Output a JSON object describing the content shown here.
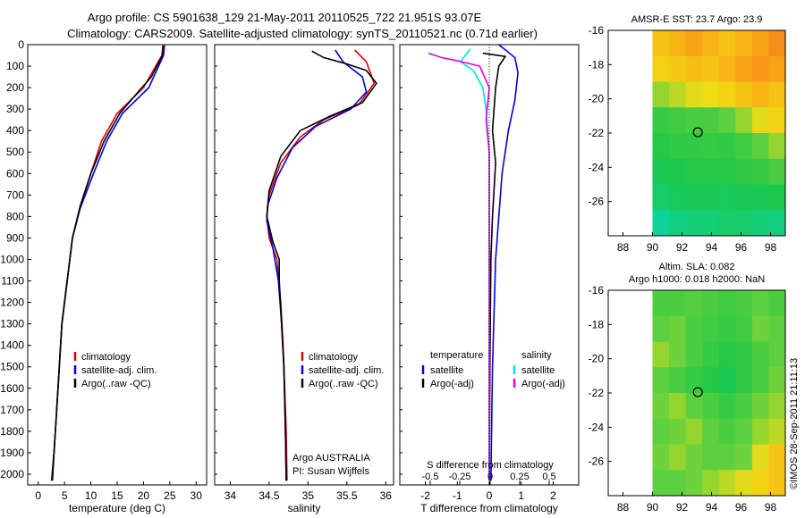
{
  "header": {
    "line1": "Argo profile: CS 5901638_129 21-May-2011 20110525_722 21.951S 93.07E",
    "line2": "Climatology: CARS2009. Satellite-adjusted climatology: synTS_20110521.nc (0.71d earlier)"
  },
  "colors": {
    "climatology": "#e00000",
    "satellite": "#0000e0",
    "argo": "#000000",
    "satellite_salinity": "#00e0e0",
    "argo_salinity": "#e000e0"
  },
  "chart_data": [
    {
      "type": "line",
      "xlabel": "temperature (deg C)",
      "xticks": [
        0,
        5,
        10,
        15,
        20,
        25,
        30
      ],
      "xlim": [
        -2,
        32
      ],
      "ylim": [
        2050,
        0
      ],
      "yticks": [
        0,
        100,
        200,
        300,
        400,
        500,
        600,
        700,
        800,
        900,
        1000,
        1100,
        1200,
        1300,
        1400,
        1500,
        1600,
        1700,
        1800,
        1900,
        2000
      ],
      "legend": [
        "climatology",
        "satellite-adj. clim.",
        "Argo(..raw -QC)"
      ],
      "legend_position": "lower-center",
      "series": [
        {
          "name": "climatology",
          "color": "#e00000",
          "points": [
            [
              23.7,
              0
            ],
            [
              23.5,
              50
            ],
            [
              20,
              200
            ],
            [
              15,
              320
            ],
            [
              12,
              450
            ],
            [
              10,
              600
            ],
            [
              8,
              750
            ],
            [
              6.5,
              900
            ],
            [
              5.5,
              1100
            ],
            [
              4.5,
              1300
            ],
            [
              4,
              1500
            ],
            [
              3.5,
              1700
            ],
            [
              3,
              1900
            ],
            [
              2.5,
              2030
            ]
          ]
        },
        {
          "name": "satellite-adj. clim.",
          "color": "#0000e0",
          "points": [
            [
              24,
              0
            ],
            [
              23.8,
              50
            ],
            [
              21,
              200
            ],
            [
              16,
              320
            ],
            [
              13,
              450
            ],
            [
              10.5,
              600
            ],
            [
              8,
              760
            ],
            [
              6.5,
              900
            ],
            [
              5.5,
              1100
            ],
            [
              4.5,
              1300
            ],
            [
              4,
              1500
            ],
            [
              3.5,
              1700
            ],
            [
              3,
              1900
            ],
            [
              2.6,
              2030
            ]
          ]
        },
        {
          "name": "Argo(..raw -QC)",
          "color": "#000000",
          "points": [
            [
              23.8,
              5
            ],
            [
              23.6,
              50
            ],
            [
              21.5,
              150
            ],
            [
              19,
              220
            ],
            [
              15.5,
              320
            ],
            [
              12.5,
              450
            ],
            [
              10,
              600
            ],
            [
              8,
              750
            ],
            [
              6.5,
              900
            ],
            [
              5.5,
              1100
            ],
            [
              4.5,
              1300
            ],
            [
              4,
              1500
            ],
            [
              3.5,
              1700
            ],
            [
              3,
              1900
            ],
            [
              2.7,
              2030
            ]
          ]
        }
      ]
    },
    {
      "type": "line",
      "xlabel": "salinity",
      "xticks": [
        34,
        34.5,
        35,
        35.5,
        36
      ],
      "xlim": [
        33.8,
        36.1
      ],
      "ylim": [
        2050,
        0
      ],
      "legend": [
        "climatology",
        "satellite-adj. clim.",
        "Argo(..raw -QC)"
      ],
      "legend_position": "lower-center",
      "annotation": [
        "Argo AUSTRALIA",
        "PI: Susan Wijffels"
      ],
      "series": [
        {
          "name": "climatology",
          "color": "#e00000",
          "points": [
            [
              35.6,
              25
            ],
            [
              35.75,
              80
            ],
            [
              35.85,
              180
            ],
            [
              35.65,
              280
            ],
            [
              35.2,
              350
            ],
            [
              34.9,
              430
            ],
            [
              34.65,
              550
            ],
            [
              34.5,
              700
            ],
            [
              34.47,
              800
            ],
            [
              34.5,
              900
            ],
            [
              34.6,
              1000
            ],
            [
              34.65,
              1200
            ],
            [
              34.68,
              1400
            ],
            [
              34.7,
              1600
            ],
            [
              34.72,
              1800
            ],
            [
              34.73,
              2030
            ]
          ]
        },
        {
          "name": "satellite-adj. clim.",
          "color": "#0000e0",
          "points": [
            [
              35.35,
              25
            ],
            [
              35.45,
              80
            ],
            [
              35.7,
              150
            ],
            [
              35.75,
              220
            ],
            [
              35.55,
              300
            ],
            [
              35.1,
              380
            ],
            [
              34.8,
              480
            ],
            [
              34.6,
              620
            ],
            [
              34.48,
              750
            ],
            [
              34.47,
              820
            ],
            [
              34.55,
              950
            ],
            [
              34.62,
              1100
            ],
            [
              34.66,
              1300
            ],
            [
              34.69,
              1500
            ],
            [
              34.71,
              1800
            ],
            [
              34.72,
              2030
            ]
          ]
        },
        {
          "name": "Argo(..raw -QC)",
          "color": "#000000",
          "points": [
            [
              35.05,
              30
            ],
            [
              35.2,
              60
            ],
            [
              35.5,
              90
            ],
            [
              35.75,
              120
            ],
            [
              35.88,
              180
            ],
            [
              35.7,
              270
            ],
            [
              35.3,
              330
            ],
            [
              34.9,
              400
            ],
            [
              34.65,
              520
            ],
            [
              34.5,
              680
            ],
            [
              34.47,
              800
            ],
            [
              34.55,
              920
            ],
            [
              34.63,
              1000
            ],
            [
              34.63,
              1100
            ],
            [
              34.66,
              1300
            ],
            [
              34.69,
              1500
            ],
            [
              34.71,
              1800
            ],
            [
              34.72,
              2030
            ]
          ]
        }
      ]
    },
    {
      "type": "line",
      "xlabel": "T difference from climatology",
      "xticks": [
        -2,
        -1,
        0,
        1,
        2
      ],
      "xlim": [
        -2.8,
        2.8
      ],
      "xlabel_top": "S difference from climatology",
      "xticks_top": [
        "-0.5",
        "-0.25",
        "0",
        "0.25",
        "0.5"
      ],
      "ylim": [
        2050,
        0
      ],
      "legend_title_left": "temperature",
      "legend_title_right": "salinity",
      "legend": [
        "satellite",
        "Argo(-adj)",
        "satellite",
        "Argo(-adj)"
      ],
      "legend_position": "lower-center",
      "series": [
        {
          "name": "satellite",
          "color": "#0000e0",
          "points": [
            [
              0.3,
              0
            ],
            [
              0.8,
              60
            ],
            [
              0.9,
              130
            ],
            [
              0.8,
              260
            ],
            [
              0.6,
              400
            ],
            [
              0.4,
              600
            ],
            [
              0.3,
              800
            ],
            [
              0.2,
              1000
            ],
            [
              0.1,
              1500
            ],
            [
              0.05,
              2030
            ]
          ]
        },
        {
          "name": "Argo(-adj)",
          "color": "#000000",
          "points": [
            [
              -0.2,
              40
            ],
            [
              0.5,
              55
            ],
            [
              0.3,
              100
            ],
            [
              0.2,
              200
            ],
            [
              0.1,
              400
            ],
            [
              0.2,
              550
            ],
            [
              0.1,
              800
            ],
            [
              0.05,
              1000
            ],
            [
              0.02,
              1500
            ],
            [
              0,
              2030
            ]
          ]
        },
        {
          "name": "satellite",
          "color": "#00e0e0",
          "points": [
            [
              -0.6,
              20
            ],
            [
              -0.9,
              80
            ],
            [
              -0.5,
              120
            ],
            [
              -0.2,
              200
            ],
            [
              -0.1,
              300
            ],
            [
              0,
              500
            ],
            [
              0,
              1000
            ],
            [
              0,
              2030
            ]
          ]
        },
        {
          "name": "Argo(-adj)",
          "color": "#e000e0",
          "points": [
            [
              -1.9,
              40
            ],
            [
              -1.5,
              60
            ],
            [
              -1.0,
              75
            ],
            [
              -0.3,
              100
            ],
            [
              0,
              200
            ],
            [
              -0.1,
              350
            ],
            [
              0,
              500
            ],
            [
              0,
              1000
            ],
            [
              0,
              2030
            ]
          ]
        }
      ]
    },
    {
      "type": "heatmap",
      "title": "AMSR-E SST: 23.7 Argo: 23.9",
      "xticks": [
        88,
        90,
        92,
        94,
        96,
        98
      ],
      "yticks": [
        -16,
        -18,
        -20,
        -22,
        -24,
        -26
      ],
      "xlim": [
        87,
        99
      ],
      "ylim": [
        -28,
        -16
      ],
      "marker": {
        "lon": 93.07,
        "lat": -21.951
      },
      "grid": [
        [
          0.8,
          0.85,
          0.9,
          0.85,
          0.8,
          0.85,
          0.9,
          0.95
        ],
        [
          0.75,
          0.78,
          0.82,
          0.8,
          0.85,
          0.9,
          0.92,
          0.9
        ],
        [
          0.6,
          0.65,
          0.7,
          0.72,
          0.75,
          0.8,
          0.85,
          0.8
        ],
        [
          0.4,
          0.42,
          0.45,
          0.45,
          0.5,
          0.6,
          0.7,
          0.75
        ],
        [
          0.35,
          0.38,
          0.38,
          0.4,
          0.38,
          0.42,
          0.5,
          0.6
        ],
        [
          0.3,
          0.32,
          0.35,
          0.35,
          0.35,
          0.38,
          0.4,
          0.45
        ],
        [
          0.25,
          0.28,
          0.3,
          0.3,
          0.28,
          0.3,
          0.3,
          0.32
        ],
        [
          0.15,
          0.2,
          0.22,
          0.22,
          0.25,
          0.25,
          0.22,
          0.2
        ]
      ]
    },
    {
      "type": "heatmap",
      "title_lines": [
        "Altim. SLA: 0.082",
        "Argo h1000: 0.018 h2000: NaN"
      ],
      "xticks": [
        88,
        90,
        92,
        94,
        96,
        98
      ],
      "yticks": [
        -16,
        -18,
        -20,
        -22,
        -24,
        -26
      ],
      "xlim": [
        87,
        99
      ],
      "ylim": [
        -28,
        -16
      ],
      "marker": {
        "lon": 93.07,
        "lat": -21.951
      },
      "grid": [
        [
          0.45,
          0.45,
          0.48,
          0.45,
          0.42,
          0.45,
          0.5,
          0.45
        ],
        [
          0.5,
          0.55,
          0.45,
          0.42,
          0.4,
          0.42,
          0.55,
          0.5
        ],
        [
          0.6,
          0.55,
          0.45,
          0.4,
          0.35,
          0.38,
          0.45,
          0.5
        ],
        [
          0.5,
          0.45,
          0.4,
          0.35,
          0.3,
          0.38,
          0.45,
          0.55
        ],
        [
          0.55,
          0.6,
          0.5,
          0.45,
          0.4,
          0.45,
          0.55,
          0.6
        ],
        [
          0.5,
          0.55,
          0.6,
          0.5,
          0.45,
          0.5,
          0.6,
          0.65
        ],
        [
          0.55,
          0.6,
          0.55,
          0.5,
          0.5,
          0.55,
          0.7,
          0.8
        ],
        [
          0.5,
          0.5,
          0.55,
          0.6,
          0.65,
          0.7,
          0.75,
          0.8
        ]
      ]
    }
  ],
  "footer": {
    "credit": "©IMOS 28-Sep-2011 21:11:13"
  }
}
